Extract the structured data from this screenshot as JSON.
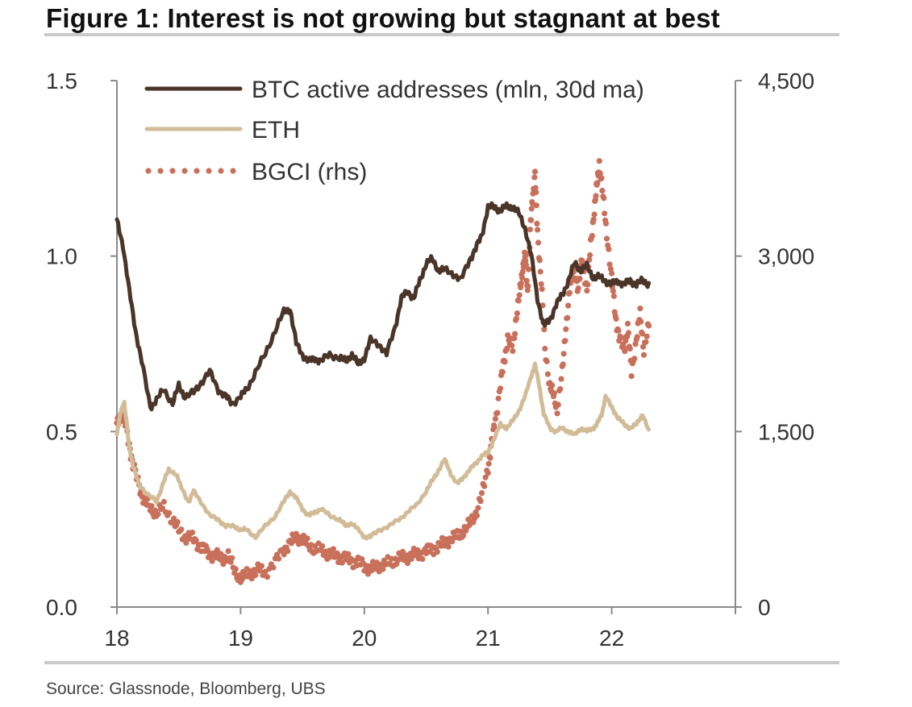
{
  "title": "Figure 1: Interest is not growing but stagnant at best",
  "source": "Source: Glassnode, Bloomberg, UBS",
  "colors": {
    "btc": "#4a3528",
    "eth": "#d2bc98",
    "bgci": "#c8705a",
    "axis": "#8a8a8a"
  },
  "chart_data": {
    "type": "line",
    "title": "Figure 1: Interest is not growing but stagnant at best",
    "x_ticks": [
      "18",
      "19",
      "20",
      "21",
      "22"
    ],
    "x_tick_values": [
      18,
      19,
      20,
      21,
      22
    ],
    "xlim": [
      18,
      23
    ],
    "left_axis": {
      "ticks": [
        "0.0",
        "0.5",
        "1.0",
        "1.5"
      ],
      "tick_values": [
        0,
        0.5,
        1.0,
        1.5
      ],
      "ylim": [
        0,
        1.5
      ]
    },
    "right_axis": {
      "ticks": [
        "0",
        "1,500",
        "3,000",
        "4,500"
      ],
      "tick_values": [
        0,
        1500,
        3000,
        4500
      ],
      "ylim": [
        0,
        4500
      ]
    },
    "legend": [
      "BTC active addresses (mln, 30d ma)",
      "ETH",
      "BGCI (rhs)"
    ],
    "series": [
      {
        "name": "BTC active addresses (mln, 30d ma)",
        "axis": "left",
        "style": "solid",
        "x": [
          18.0,
          18.05,
          18.1,
          18.15,
          18.2,
          18.27,
          18.32,
          18.38,
          18.45,
          18.5,
          18.55,
          18.62,
          18.68,
          18.75,
          18.82,
          18.88,
          18.93,
          19.0,
          19.05,
          19.12,
          19.2,
          19.28,
          19.35,
          19.4,
          19.45,
          19.5,
          19.55,
          19.6,
          19.65,
          19.72,
          19.8,
          19.85,
          19.9,
          19.95,
          20.0,
          20.05,
          20.12,
          20.18,
          20.25,
          20.3,
          20.35,
          20.4,
          20.45,
          20.5,
          20.55,
          20.6,
          20.65,
          20.72,
          20.78,
          20.85,
          20.9,
          20.95,
          21.0,
          21.05,
          21.1,
          21.15,
          21.2,
          21.25,
          21.3,
          21.35,
          21.4,
          21.45,
          21.5,
          21.55,
          21.6,
          21.65,
          21.7,
          21.75,
          21.8,
          21.85,
          21.9,
          21.95,
          22.0,
          22.05,
          22.1,
          22.15,
          22.2,
          22.25,
          22.3
        ],
        "values": [
          1.1,
          1.03,
          0.9,
          0.79,
          0.7,
          0.57,
          0.59,
          0.62,
          0.58,
          0.63,
          0.6,
          0.61,
          0.64,
          0.67,
          0.62,
          0.6,
          0.58,
          0.6,
          0.62,
          0.67,
          0.72,
          0.79,
          0.84,
          0.85,
          0.75,
          0.72,
          0.7,
          0.71,
          0.7,
          0.72,
          0.71,
          0.7,
          0.72,
          0.69,
          0.71,
          0.76,
          0.75,
          0.72,
          0.8,
          0.88,
          0.9,
          0.88,
          0.93,
          0.98,
          0.99,
          0.96,
          0.96,
          0.95,
          0.93,
          0.99,
          1.02,
          1.06,
          1.14,
          1.14,
          1.13,
          1.14,
          1.14,
          1.12,
          1.08,
          1.0,
          0.88,
          0.8,
          0.82,
          0.86,
          0.89,
          0.93,
          0.98,
          0.96,
          0.97,
          0.94,
          0.94,
          0.93,
          0.92,
          0.93,
          0.92,
          0.93,
          0.92,
          0.93,
          0.92
        ]
      },
      {
        "name": "ETH",
        "axis": "left",
        "style": "solid",
        "x": [
          18.0,
          18.03,
          18.06,
          18.1,
          18.13,
          18.18,
          18.25,
          18.32,
          18.38,
          18.42,
          18.48,
          18.52,
          18.58,
          18.62,
          18.68,
          18.75,
          18.82,
          18.88,
          18.95,
          19.0,
          19.05,
          19.12,
          19.2,
          19.28,
          19.35,
          19.4,
          19.45,
          19.5,
          19.55,
          19.6,
          19.65,
          19.72,
          19.8,
          19.85,
          19.9,
          19.95,
          20.0,
          20.05,
          20.12,
          20.2,
          20.28,
          20.35,
          20.42,
          20.5,
          20.55,
          20.6,
          20.65,
          20.7,
          20.75,
          20.8,
          20.85,
          20.9,
          20.95,
          21.0,
          21.05,
          21.1,
          21.15,
          21.2,
          21.25,
          21.3,
          21.35,
          21.38,
          21.42,
          21.45,
          21.5,
          21.55,
          21.6,
          21.65,
          21.7,
          21.75,
          21.8,
          21.85,
          21.88,
          21.92,
          21.95,
          22.0,
          22.05,
          22.1,
          22.15,
          22.2,
          22.25,
          22.3
        ],
        "values": [
          0.49,
          0.56,
          0.58,
          0.46,
          0.4,
          0.35,
          0.32,
          0.3,
          0.36,
          0.39,
          0.38,
          0.34,
          0.3,
          0.33,
          0.3,
          0.26,
          0.25,
          0.23,
          0.23,
          0.22,
          0.22,
          0.2,
          0.23,
          0.26,
          0.3,
          0.33,
          0.31,
          0.28,
          0.26,
          0.27,
          0.28,
          0.26,
          0.25,
          0.23,
          0.24,
          0.22,
          0.2,
          0.2,
          0.22,
          0.23,
          0.25,
          0.27,
          0.29,
          0.33,
          0.36,
          0.39,
          0.42,
          0.38,
          0.35,
          0.37,
          0.39,
          0.41,
          0.43,
          0.44,
          0.48,
          0.52,
          0.51,
          0.53,
          0.56,
          0.6,
          0.66,
          0.69,
          0.62,
          0.55,
          0.51,
          0.5,
          0.51,
          0.5,
          0.49,
          0.51,
          0.5,
          0.51,
          0.52,
          0.55,
          0.6,
          0.57,
          0.54,
          0.52,
          0.51,
          0.52,
          0.55,
          0.5
        ]
      },
      {
        "name": "BGCI (rhs)",
        "axis": "right",
        "style": "dotted",
        "x": [
          18.0,
          18.03,
          18.06,
          18.1,
          18.13,
          18.18,
          18.22,
          18.27,
          18.32,
          18.38,
          18.45,
          18.5,
          18.55,
          18.6,
          18.65,
          18.7,
          18.75,
          18.8,
          18.85,
          18.9,
          18.95,
          19.0,
          19.05,
          19.1,
          19.15,
          19.2,
          19.28,
          19.35,
          19.4,
          19.45,
          19.5,
          19.55,
          19.6,
          19.65,
          19.7,
          19.75,
          19.8,
          19.85,
          19.9,
          19.95,
          20.0,
          20.05,
          20.1,
          20.15,
          20.2,
          20.25,
          20.3,
          20.35,
          20.4,
          20.45,
          20.5,
          20.55,
          20.6,
          20.65,
          20.7,
          20.75,
          20.8,
          20.85,
          20.9,
          20.95,
          21.0,
          21.03,
          21.06,
          21.1,
          21.13,
          21.16,
          21.2,
          21.23,
          21.26,
          21.28,
          21.3,
          21.32,
          21.34,
          21.36,
          21.38,
          21.4,
          21.43,
          21.46,
          21.5,
          21.53,
          21.56,
          21.6,
          21.63,
          21.66,
          21.7,
          21.73,
          21.76,
          21.8,
          21.83,
          21.86,
          21.88,
          21.9,
          21.93,
          21.96,
          22.0,
          22.03,
          22.06,
          22.1,
          22.13,
          22.16,
          22.2,
          22.23,
          22.26,
          22.3
        ],
        "values": [
          1550,
          1650,
          1600,
          1400,
          1200,
          1050,
          900,
          850,
          800,
          850,
          750,
          650,
          600,
          600,
          550,
          500,
          450,
          450,
          400,
          450,
          300,
          250,
          270,
          300,
          320,
          300,
          380,
          500,
          550,
          600,
          580,
          520,
          500,
          480,
          460,
          440,
          430,
          420,
          400,
          390,
          350,
          330,
          340,
          360,
          370,
          400,
          420,
          430,
          450,
          460,
          480,
          500,
          520,
          550,
          580,
          600,
          650,
          700,
          800,
          950,
          1200,
          1400,
          1600,
          1900,
          2100,
          2300,
          2200,
          2500,
          2700,
          2900,
          3000,
          2700,
          3200,
          3500,
          3700,
          3200,
          2800,
          2200,
          1900,
          1800,
          1700,
          2000,
          2400,
          2700,
          2900,
          2700,
          3000,
          2700,
          3100,
          3400,
          3600,
          3800,
          3500,
          3200,
          2800,
          2500,
          2300,
          2200,
          2400,
          2000,
          2300,
          2500,
          2200,
          2400
        ]
      }
    ]
  }
}
